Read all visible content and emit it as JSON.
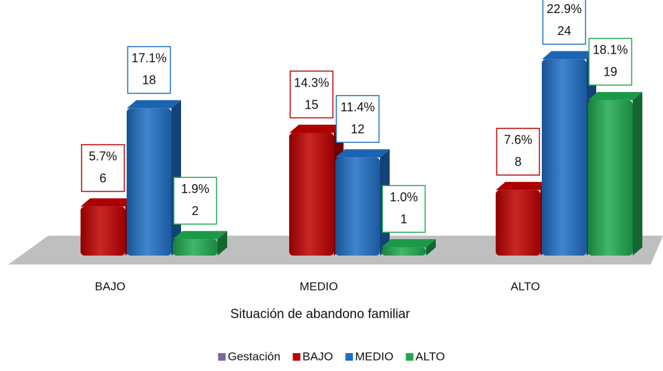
{
  "chart_data": {
    "type": "bar3d",
    "x_label": "Situación de abandono familiar",
    "categories": [
      "BAJO",
      "MEDIO",
      "ALTO"
    ],
    "series": [
      {
        "name": "Gestación",
        "color": "#8064a2",
        "values": [
          null,
          null,
          null
        ]
      },
      {
        "name": "BAJO",
        "color": "#c00000",
        "values": [
          6,
          15,
          8
        ],
        "percent_labels": [
          "5.7%",
          "14.3%",
          "7.6%"
        ]
      },
      {
        "name": "MEDIO",
        "color": "#1f6fc5",
        "values": [
          18,
          12,
          24
        ],
        "percent_labels": [
          "17.1%",
          "11.4%",
          "22.9%"
        ]
      },
      {
        "name": "ALTO",
        "color": "#1faa4f",
        "values": [
          2,
          1,
          19
        ],
        "percent_labels": [
          "1.9%",
          "1.0%",
          "18.1%"
        ]
      }
    ]
  }
}
